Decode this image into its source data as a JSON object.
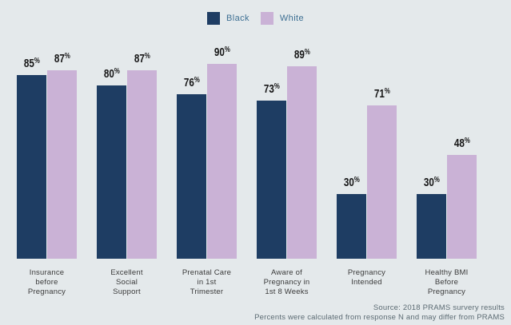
{
  "colors": {
    "background": "#e4e9eb",
    "black_series": "#1e3d63",
    "white_series": "#cab2d6",
    "legend_text": "#3e7093",
    "value_text": "#161616",
    "category_text": "#3b3b3b",
    "source_text": "#5c6b73"
  },
  "legend": {
    "items": [
      {
        "label": "Black",
        "color": "#1e3d63"
      },
      {
        "label": "White",
        "color": "#cab2d6"
      }
    ]
  },
  "chart_data": {
    "type": "bar",
    "title": "",
    "categories": [
      "Insurance before Pregnancy",
      "Excellent Social Support",
      "Prenatal Care in 1st Trimester",
      "Aware of Pregnancy in 1st 8 Weeks",
      "Pregnancy Intended",
      "Healthy BMI Before Pregnancy"
    ],
    "tick_labels": [
      "Insurance\nbefore\nPregnancy",
      "Excellent\nSocial\nSupport",
      "Prenatal Care\nin 1st\nTrimester",
      "Aware of\nPregnancy in\n1st 8 Weeks",
      "Pregnancy\nIntended",
      "Healthy BMI\nBefore\nPregnancy"
    ],
    "series": [
      {
        "name": "Black",
        "color": "#1e3d63",
        "values": [
          85,
          80,
          76,
          73,
          30,
          30
        ]
      },
      {
        "name": "White",
        "color": "#cab2d6",
        "values": [
          87,
          87,
          90,
          89,
          71,
          48
        ]
      }
    ],
    "value_suffix": "%",
    "ylim": [
      0,
      100
    ],
    "grid": false,
    "axis_lines": false,
    "legend_position": "top-center"
  },
  "footer": {
    "source_line1": "Source: 2018 PRAMS survery results",
    "source_line2": "Percents were calculated from response N and may differ from PRAMS"
  }
}
